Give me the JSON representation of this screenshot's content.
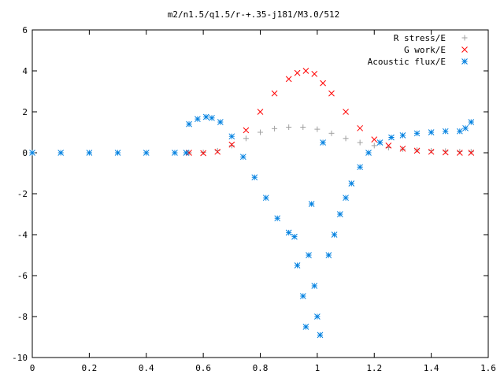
{
  "chart_data": {
    "type": "scatter",
    "title": "m2/n1.5/q1.5/r-+.35-j181/M3.0/512",
    "xlabel": "",
    "ylabel": "",
    "xlim": [
      0,
      1.6
    ],
    "ylim": [
      -10,
      6
    ],
    "x_ticks": [
      0,
      0.2,
      0.4,
      0.6,
      0.8,
      1,
      1.2,
      1.4,
      1.6
    ],
    "x_tick_labels": [
      "0",
      "0.2",
      "0.4",
      "0.6",
      "0.8",
      "1",
      "1.2",
      "1.4",
      "1.6"
    ],
    "y_ticks": [
      6,
      4,
      2,
      0,
      -2,
      -4,
      -6,
      -8,
      -10
    ],
    "y_tick_labels": [
      "6",
      "4",
      "2",
      "0",
      "-2",
      "-4",
      "-6",
      "-8",
      "-10"
    ],
    "grid": false,
    "legend_position": "top-right",
    "series": [
      {
        "name": "R stress/E",
        "marker": "plus",
        "color": "#a0a0a0",
        "x": [
          0.55,
          0.6,
          0.65,
          0.7,
          0.75,
          0.8,
          0.85,
          0.9,
          0.95,
          1.0,
          1.05,
          1.1,
          1.15,
          1.2,
          1.25,
          1.3,
          1.35,
          1.4,
          1.45,
          1.5,
          1.54
        ],
        "y": [
          0.0,
          0.02,
          0.1,
          0.35,
          0.7,
          1.0,
          1.18,
          1.25,
          1.25,
          1.15,
          0.95,
          0.7,
          0.5,
          0.35,
          0.25,
          0.18,
          0.13,
          0.1,
          0.08,
          0.06,
          0.05
        ]
      },
      {
        "name": "G work/E",
        "marker": "cross",
        "color": "#ff0000",
        "x": [
          0.55,
          0.6,
          0.65,
          0.7,
          0.75,
          0.8,
          0.85,
          0.9,
          0.93,
          0.96,
          0.99,
          1.02,
          1.05,
          1.1,
          1.15,
          1.2,
          1.25,
          1.3,
          1.35,
          1.4,
          1.45,
          1.5,
          1.54
        ],
        "y": [
          0.0,
          -0.02,
          0.05,
          0.4,
          1.1,
          2.0,
          2.9,
          3.6,
          3.9,
          4.0,
          3.85,
          3.4,
          2.9,
          2.0,
          1.2,
          0.65,
          0.35,
          0.2,
          0.1,
          0.05,
          0.02,
          0.0,
          0.0
        ]
      },
      {
        "name": "Acoustic flux/E",
        "marker": "star",
        "color": "#0080e0",
        "x": [
          0.0,
          0.1,
          0.2,
          0.3,
          0.4,
          0.5,
          0.54,
          0.55,
          0.58,
          0.61,
          0.63,
          0.66,
          0.7,
          0.74,
          0.78,
          0.82,
          0.86,
          0.9,
          0.92,
          0.93,
          0.95,
          0.96,
          0.97,
          0.98,
          0.99,
          1.0,
          1.01,
          1.02,
          1.04,
          1.06,
          1.08,
          1.1,
          1.12,
          1.15,
          1.18,
          1.22,
          1.26,
          1.3,
          1.35,
          1.4,
          1.45,
          1.5,
          1.52,
          1.54
        ],
        "y": [
          0,
          0,
          0,
          0,
          0,
          0,
          0,
          1.4,
          1.65,
          1.75,
          1.7,
          1.5,
          0.8,
          -0.2,
          -1.2,
          -2.2,
          -3.2,
          -3.9,
          -4.1,
          -5.5,
          -7.0,
          -8.5,
          -5.0,
          -2.5,
          -6.5,
          -8.0,
          -8.9,
          0.5,
          -5.0,
          -4.0,
          -3.0,
          -2.2,
          -1.5,
          -0.7,
          0.0,
          0.5,
          0.75,
          0.85,
          0.95,
          1.0,
          1.05,
          1.05,
          1.2,
          1.5
        ]
      }
    ]
  }
}
